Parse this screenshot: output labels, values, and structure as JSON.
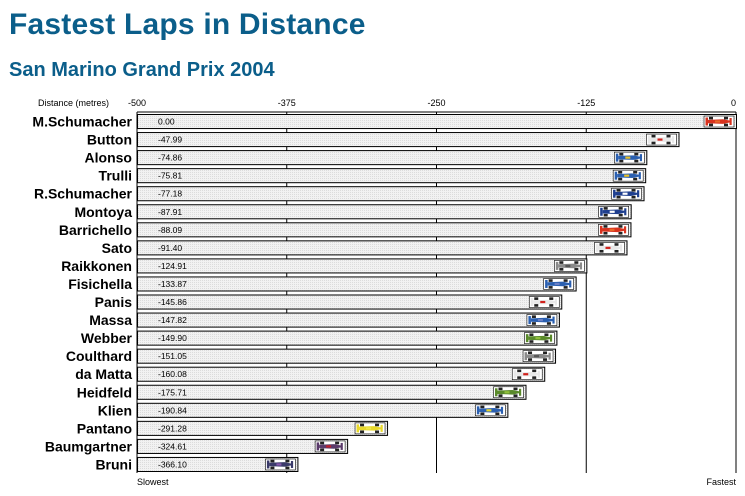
{
  "header": {
    "title": "Fastest Laps in Distance",
    "subtitle": "San Marino Grand Prix 2004"
  },
  "chart_data": {
    "type": "bar",
    "orientation": "horizontal",
    "title": "Fastest Laps in Distance",
    "subtitle": "San Marino Grand Prix 2004",
    "xlabel": "Distance (metres)",
    "xlim": [
      -500,
      0
    ],
    "xticks": [
      -500,
      -375,
      -250,
      -125,
      0
    ],
    "xtick_labels": [
      "-500",
      "-375",
      "-250",
      "-125",
      "0"
    ],
    "left_end_label": "Slowest",
    "right_end_label": "Fastest",
    "grid": true,
    "categories": [
      "M.Schumacher",
      "Button",
      "Alonso",
      "Trulli",
      "R.Schumacher",
      "Montoya",
      "Barrichello",
      "Sato",
      "Raikkonen",
      "Fisichella",
      "Panis",
      "Massa",
      "Webber",
      "Coulthard",
      "da Matta",
      "Heidfeld",
      "Klien",
      "Pantano",
      "Baumgartner",
      "Bruni"
    ],
    "values": [
      0.0,
      -47.99,
      -74.86,
      -75.81,
      -77.18,
      -87.91,
      -88.09,
      -91.4,
      -124.91,
      -133.87,
      -145.86,
      -147.82,
      -149.9,
      -151.05,
      -160.08,
      -175.71,
      -190.84,
      -291.28,
      -324.61,
      -366.1
    ],
    "value_labels": [
      "0.00",
      "-47.99",
      "-74.86",
      "-75.81",
      "-77.18",
      "-87.91",
      "-88.09",
      "-91.40",
      "-124.91",
      "-133.87",
      "-145.86",
      "-147.82",
      "-149.90",
      "-151.05",
      "-160.08",
      "-175.71",
      "-190.84",
      "-291.28",
      "-324.61",
      "-366.10"
    ],
    "car_colors": [
      {
        "body": "#d8321e",
        "accent": "#e86a2a"
      },
      {
        "body": "#e8e8e8",
        "accent": "#d0211b"
      },
      {
        "body": "#2a5fb0",
        "accent": "#e8c12a"
      },
      {
        "body": "#2a5fb0",
        "accent": "#e8c12a"
      },
      {
        "body": "#1f3f8f",
        "accent": "#ffffff"
      },
      {
        "body": "#1f3f8f",
        "accent": "#ffffff"
      },
      {
        "body": "#d8321e",
        "accent": "#e86a2a"
      },
      {
        "body": "#e8e8e8",
        "accent": "#d0211b"
      },
      {
        "body": "#8a8a8a",
        "accent": "#555555"
      },
      {
        "body": "#2a5fb0",
        "accent": "#6b7fc4"
      },
      {
        "body": "#e8e8e8",
        "accent": "#d0211b"
      },
      {
        "body": "#2a5fb0",
        "accent": "#6b7fc4"
      },
      {
        "body": "#5a8a2a",
        "accent": "#8fbf3a"
      },
      {
        "body": "#8a8a8a",
        "accent": "#555555"
      },
      {
        "body": "#e8e8e8",
        "accent": "#d0211b"
      },
      {
        "body": "#5a8a2a",
        "accent": "#8fbf3a"
      },
      {
        "body": "#2a5fb0",
        "accent": "#e8d82a"
      },
      {
        "body": "#e8d82a",
        "accent": "#f2e84a"
      },
      {
        "body": "#5a3a6a",
        "accent": "#c0202a"
      },
      {
        "body": "#3a3a6a",
        "accent": "#8a5ab0"
      }
    ],
    "bar_fill": "#ebebeb",
    "grid_color": "#000000",
    "title_color": "#0b5e8a"
  }
}
